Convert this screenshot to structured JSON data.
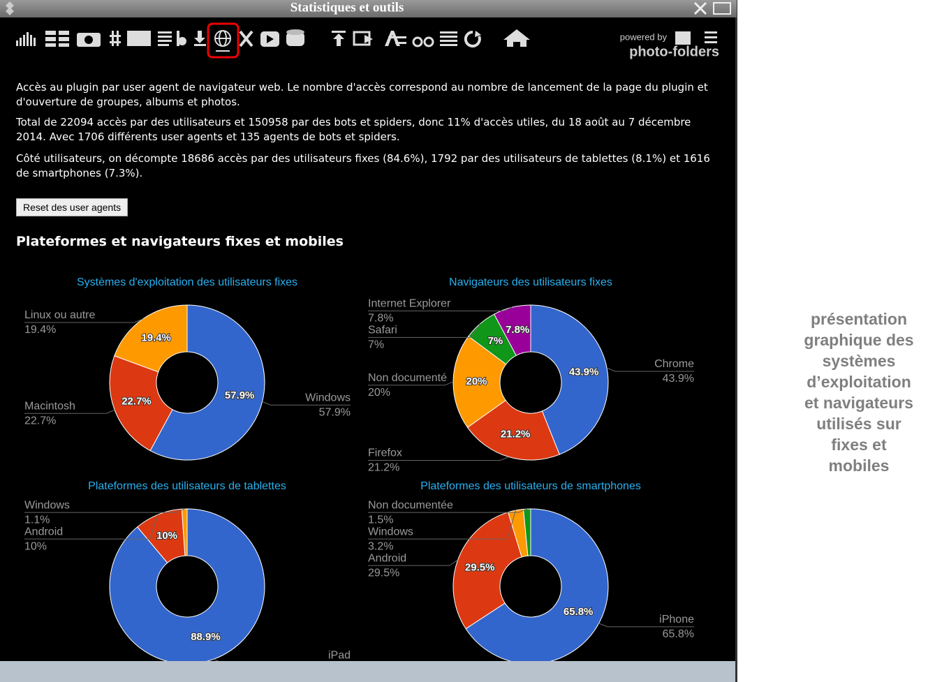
{
  "window": {
    "title": "Statistiques et outils"
  },
  "toolbar": {
    "powered_by": "powered by",
    "brand": "photo-folders"
  },
  "paragraphs": [
    "Accès au plugin par user agent de navigateur web. Le nombre d'accès correspond au nombre de lancement de la page du plugin et d'ouverture de groupes, albums et photos.",
    "Total de 22094 accès par des utilisateurs et 150958 par des bots et spiders, donc 11% d'accès utiles, du 18 août au 7 décembre 2014. Avec 1706 différents user agents et 135 agents de bots et spiders.",
    "Côté utilisateurs, on décompte 18686 accès par des utilisateurs fixes (84.6%), 1792 par des utilisateurs de tablettes (8.1%) et 1616 de smartphones (7.3%)."
  ],
  "button": "Reset des user agents",
  "heading": "Plateformes et navigateurs fixes et mobiles",
  "chart_data": [
    {
      "type": "pie",
      "donut": true,
      "title": "Systèmes d'exploitation des utilisateurs fixes",
      "categories": [
        "Windows",
        "Macintosh",
        "Linux ou autre"
      ],
      "values": [
        57.9,
        22.7,
        19.4
      ],
      "value_labels": [
        "57.9%",
        "22.7%",
        "19.4%"
      ],
      "colors": [
        "#3366cc",
        "#dc3912",
        "#ff9900"
      ]
    },
    {
      "type": "pie",
      "donut": true,
      "title": "Navigateurs des utilisateurs fixes",
      "categories": [
        "Chrome",
        "Firefox",
        "Non documenté",
        "Safari",
        "Internet Explorer"
      ],
      "values": [
        43.9,
        21.2,
        20,
        7,
        7.8
      ],
      "value_labels": [
        "43.9%",
        "21.2%",
        "20%",
        "7%",
        "7.8%"
      ],
      "colors": [
        "#3366cc",
        "#dc3912",
        "#ff9900",
        "#109618",
        "#990099"
      ]
    },
    {
      "type": "pie",
      "donut": true,
      "title": "Plateformes des utilisateurs de tablettes",
      "categories": [
        "iPad",
        "Android",
        "Windows"
      ],
      "values": [
        88.9,
        10,
        1.1
      ],
      "value_labels": [
        "88.9%",
        "10%",
        "1.1%"
      ],
      "colors": [
        "#3366cc",
        "#dc3912",
        "#ff9900"
      ]
    },
    {
      "type": "pie",
      "donut": true,
      "title": "Plateformes des utilisateurs de smartphones",
      "categories": [
        "iPhone",
        "Android",
        "Windows",
        "Non documentée"
      ],
      "values": [
        65.8,
        29.5,
        3.2,
        1.5
      ],
      "value_labels": [
        "65.8%",
        "29.5%",
        "3.2%",
        "1.5%"
      ],
      "colors": [
        "#3366cc",
        "#dc3912",
        "#ff9900",
        "#109618"
      ]
    }
  ],
  "annotation_lines": [
    "présentation",
    "graphique des",
    "systèmes",
    "d’exploitation",
    "et navigateurs",
    "utilisés sur",
    "fixes et",
    "mobiles"
  ]
}
